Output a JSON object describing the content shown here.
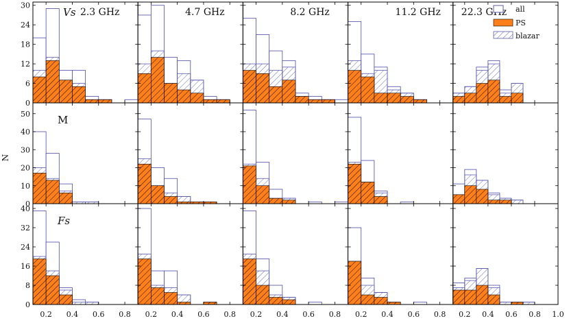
{
  "figure": {
    "ylabel": "N",
    "colors": {
      "all": "#4a4aa8",
      "ps_fill": "#ff7f1a",
      "ps_edge": "#000000",
      "blazar": "#5b5bb0"
    }
  },
  "legend": {
    "items": [
      {
        "key": "all",
        "label": "all"
      },
      {
        "key": "ps",
        "label": "PS"
      },
      {
        "key": "blazar",
        "label": "blazar"
      }
    ]
  },
  "chart_data": {
    "type": "bar",
    "histogram": "stacked-overlay",
    "bin_edges": [
      0.1,
      0.2,
      0.3,
      0.4,
      0.5,
      0.6,
      0.7,
      0.8,
      0.9,
      1.0
    ],
    "columns": [
      "2.3 GHz",
      "4.7 GHz",
      "8.2 GHz",
      "11.2 GHz",
      "22.3 GHz"
    ],
    "column_xranges": [
      [
        0.1,
        0.9
      ],
      [
        0.1,
        0.9
      ],
      [
        0.1,
        0.9
      ],
      [
        0.1,
        0.9
      ],
      [
        0.1,
        1.0
      ]
    ],
    "column_xticks": [
      [
        "0.2",
        "0.4",
        "0.6",
        "0.8"
      ],
      [
        "0.2",
        "0.4",
        "0.6",
        "0.8"
      ],
      [
        "0.2",
        "0.4",
        "0.6",
        "0.8"
      ],
      [
        "0.2",
        "0.4",
        "0.6",
        "0.8"
      ],
      [
        "0.2",
        "0.4",
        "0.6",
        "0.8",
        "1.0"
      ]
    ],
    "rows": [
      {
        "label": "Vs",
        "italic": true,
        "ylim": [
          0,
          31
        ],
        "yticks": [
          "0",
          "6",
          "12",
          "18",
          "24",
          "30"
        ],
        "panels": [
          {
            "all": [
              20,
              29,
              10,
              10,
              2,
              1,
              0,
              1
            ],
            "blazar": [
              10,
              14,
              7,
              6,
              1,
              1,
              0,
              0
            ],
            "ps": [
              8,
              13,
              7,
              5,
              1,
              1,
              0,
              0
            ]
          },
          {
            "all": [
              27,
              30,
              14,
              13,
              7,
              2,
              1,
              0
            ],
            "blazar": [
              12,
              16,
              6,
              9,
              7,
              1,
              1,
              0
            ],
            "ps": [
              9,
              14,
              6,
              4,
              3,
              1,
              1,
              0
            ]
          },
          {
            "all": [
              26,
              21,
              16,
              13,
              3,
              2,
              1,
              1
            ],
            "blazar": [
              12,
              12,
              10,
              11,
              2,
              1,
              1,
              0
            ],
            "ps": [
              10,
              9,
              5,
              7,
              2,
              1,
              1,
              0
            ]
          },
          {
            "all": [
              25,
              15,
              11,
              5,
              3,
              1,
              0,
              0
            ],
            "blazar": [
              13,
              9,
              10,
              4,
              3,
              1,
              0,
              0
            ],
            "ps": [
              10,
              8,
              3,
              3,
              2,
              1,
              0,
              0
            ]
          },
          {
            "all": [
              3,
              5,
              11,
              13,
              4,
              6,
              0,
              0,
              0
            ],
            "blazar": [
              3,
              5,
              10,
              12,
              3,
              6,
              0,
              0,
              0
            ],
            "ps": [
              2,
              3,
              6,
              7,
              2,
              3,
              0,
              0,
              0
            ]
          }
        ]
      },
      {
        "label": "M",
        "italic": false,
        "ylim": [
          0,
          56
        ],
        "yticks": [
          "0",
          "10",
          "20",
          "30",
          "40",
          "50"
        ],
        "panels": [
          {
            "all": [
              40,
              28,
              11,
              1,
              1,
              0,
              0,
              0
            ],
            "blazar": [
              20,
              14,
              7,
              1,
              1,
              0,
              0,
              0
            ],
            "ps": [
              17,
              13,
              6,
              0,
              0,
              0,
              0,
              0
            ]
          },
          {
            "all": [
              47,
              20,
              14,
              4,
              1,
              1,
              0,
              0
            ],
            "blazar": [
              25,
              10,
              6,
              4,
              1,
              1,
              0,
              0
            ],
            "ps": [
              22,
              10,
              4,
              1,
              1,
              1,
              0,
              0
            ]
          },
          {
            "all": [
              52,
              23,
              8,
              3,
              0,
              1,
              0,
              1
            ],
            "blazar": [
              22,
              14,
              3,
              3,
              0,
              0,
              0,
              0
            ],
            "ps": [
              21,
              10,
              3,
              2,
              0,
              0,
              0,
              0
            ]
          },
          {
            "all": [
              48,
              24,
              7,
              0,
              1,
              0,
              0,
              0
            ],
            "blazar": [
              23,
              12,
              6,
              0,
              0,
              0,
              0,
              0
            ],
            "ps": [
              22,
              12,
              4,
              0,
              0,
              0,
              0,
              0
            ]
          },
          {
            "all": [
              11,
              19,
              13,
              6,
              3,
              2,
              0,
              0,
              0
            ],
            "blazar": [
              5,
              16,
              13,
              5,
              3,
              2,
              0,
              0,
              0
            ],
            "ps": [
              5,
              10,
              8,
              2,
              2,
              0,
              0,
              0,
              0
            ]
          }
        ]
      },
      {
        "label": "Fs",
        "italic": true,
        "ylim": [
          0,
          42
        ],
        "yticks": [
          "0",
          "8",
          "16",
          "24",
          "32",
          "40"
        ],
        "panels": [
          {
            "all": [
              39,
              26,
              7,
              2,
              1,
              0,
              0,
              0
            ],
            "blazar": [
              20,
              14,
              6,
              1,
              1,
              0,
              0,
              0
            ],
            "ps": [
              19,
              12,
              4,
              0,
              0,
              0,
              0,
              0
            ]
          },
          {
            "all": [
              40,
              14,
              14,
              4,
              0,
              1,
              0,
              0
            ],
            "blazar": [
              21,
              8,
              7,
              4,
              0,
              1,
              0,
              0
            ],
            "ps": [
              19,
              7,
              5,
              1,
              0,
              1,
              0,
              0
            ]
          },
          {
            "all": [
              39,
              19,
              8,
              3,
              0,
              1,
              0,
              0
            ],
            "blazar": [
              21,
              14,
              4,
              3,
              0,
              0,
              0,
              0
            ],
            "ps": [
              19,
              8,
              3,
              2,
              0,
              0,
              0,
              0
            ]
          },
          {
            "all": [
              32,
              11,
              5,
              1,
              0,
              1,
              0,
              0
            ],
            "blazar": [
              18,
              8,
              5,
              0,
              0,
              0,
              0,
              0
            ],
            "ps": [
              18,
              4,
              3,
              1,
              0,
              0,
              0,
              0
            ]
          },
          {
            "all": [
              9,
              11,
              15,
              8,
              1,
              1,
              1,
              0,
              0
            ],
            "blazar": [
              7,
              10,
              15,
              7,
              1,
              1,
              1,
              0,
              0
            ],
            "ps": [
              6,
              6,
              8,
              4,
              0,
              1,
              0,
              0,
              0
            ]
          }
        ]
      }
    ]
  }
}
